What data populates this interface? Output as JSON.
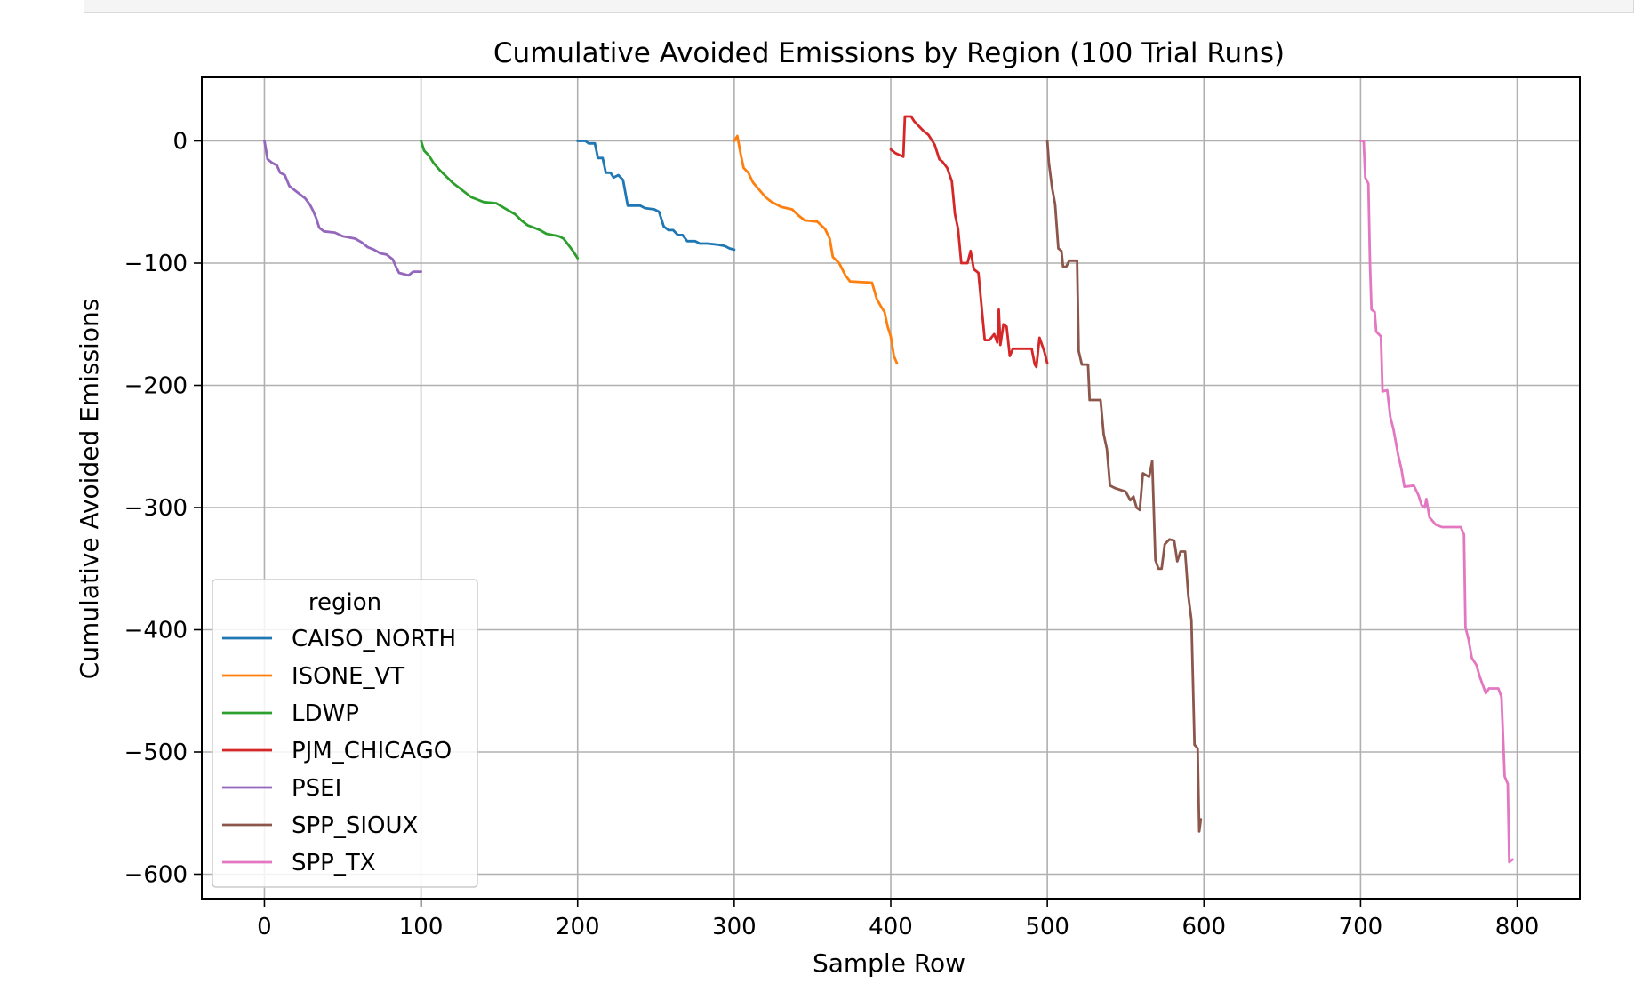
{
  "chart_data": {
    "type": "line",
    "title": "Cumulative Avoided Emissions by Region (100 Trial Runs)",
    "xlabel": "Sample Row",
    "ylabel": "Cumulative Avoided Emissions",
    "xlim": [
      -40,
      840
    ],
    "ylim": [
      -620,
      52
    ],
    "xticks": [
      0,
      100,
      200,
      300,
      400,
      500,
      600,
      700,
      800
    ],
    "yticks": [
      0,
      -100,
      -200,
      -300,
      -400,
      -500,
      -600
    ],
    "grid": true,
    "legend": {
      "title": "region",
      "placement": "lower-left"
    },
    "series": [
      {
        "name": "CAISO_NORTH",
        "color": "#1f77b4",
        "points": [
          [
            200,
            0
          ],
          [
            205,
            0
          ],
          [
            207,
            -2
          ],
          [
            211,
            -2
          ],
          [
            213,
            -14
          ],
          [
            216,
            -14
          ],
          [
            218,
            -26
          ],
          [
            221,
            -26
          ],
          [
            223,
            -30
          ],
          [
            226,
            -28
          ],
          [
            229,
            -32
          ],
          [
            232,
            -53
          ],
          [
            240,
            -53
          ],
          [
            243,
            -55
          ],
          [
            249,
            -56
          ],
          [
            252,
            -58
          ],
          [
            255,
            -70
          ],
          [
            258,
            -73
          ],
          [
            261,
            -73
          ],
          [
            264,
            -77
          ],
          [
            267,
            -77
          ],
          [
            270,
            -82
          ],
          [
            275,
            -82
          ],
          [
            278,
            -84
          ],
          [
            283,
            -84
          ],
          [
            290,
            -85
          ],
          [
            294,
            -86
          ],
          [
            297,
            -88
          ],
          [
            300,
            -89
          ]
        ]
      },
      {
        "name": "ISONE_VT",
        "color": "#ff7f0e",
        "points": [
          [
            300,
            0
          ],
          [
            302,
            4
          ],
          [
            304,
            -10
          ],
          [
            306,
            -22
          ],
          [
            309,
            -26
          ],
          [
            312,
            -34
          ],
          [
            316,
            -40
          ],
          [
            320,
            -46
          ],
          [
            324,
            -50
          ],
          [
            330,
            -54
          ],
          [
            337,
            -56
          ],
          [
            341,
            -61
          ],
          [
            345,
            -65
          ],
          [
            353,
            -66
          ],
          [
            358,
            -72
          ],
          [
            361,
            -80
          ],
          [
            363,
            -95
          ],
          [
            367,
            -100
          ],
          [
            371,
            -110
          ],
          [
            374,
            -115
          ],
          [
            388,
            -116
          ],
          [
            391,
            -129
          ],
          [
            394,
            -136
          ],
          [
            396,
            -140
          ],
          [
            398,
            -152
          ],
          [
            400,
            -160
          ],
          [
            402,
            -176
          ],
          [
            404,
            -182
          ]
        ]
      },
      {
        "name": "LDWP",
        "color": "#2ca02c",
        "points": [
          [
            100,
            0
          ],
          [
            102,
            -8
          ],
          [
            105,
            -12
          ],
          [
            108,
            -18
          ],
          [
            112,
            -24
          ],
          [
            116,
            -29
          ],
          [
            120,
            -34
          ],
          [
            124,
            -38
          ],
          [
            128,
            -42
          ],
          [
            132,
            -46
          ],
          [
            136,
            -48
          ],
          [
            140,
            -50
          ],
          [
            148,
            -51
          ],
          [
            152,
            -54
          ],
          [
            156,
            -57
          ],
          [
            160,
            -60
          ],
          [
            164,
            -65
          ],
          [
            168,
            -69
          ],
          [
            172,
            -71
          ],
          [
            176,
            -73
          ],
          [
            180,
            -76
          ],
          [
            184,
            -77
          ],
          [
            188,
            -78
          ],
          [
            191,
            -80
          ],
          [
            194,
            -85
          ],
          [
            197,
            -90
          ],
          [
            200,
            -96
          ]
        ]
      },
      {
        "name": "PJM_CHICAGO",
        "color": "#d62728",
        "points": [
          [
            400,
            -7
          ],
          [
            403,
            -10
          ],
          [
            408,
            -13
          ],
          [
            409,
            20
          ],
          [
            413,
            20
          ],
          [
            415,
            16
          ],
          [
            418,
            12
          ],
          [
            421,
            8
          ],
          [
            424,
            5
          ],
          [
            428,
            -3
          ],
          [
            431,
            -15
          ],
          [
            433,
            -17
          ],
          [
            436,
            -22
          ],
          [
            439,
            -33
          ],
          [
            441,
            -60
          ],
          [
            443,
            -72
          ],
          [
            445,
            -100
          ],
          [
            449,
            -100
          ],
          [
            451,
            -90
          ],
          [
            453,
            -105
          ],
          [
            456,
            -108
          ],
          [
            458,
            -136
          ],
          [
            460,
            -163
          ],
          [
            463,
            -163
          ],
          [
            466,
            -158
          ],
          [
            468,
            -165
          ],
          [
            469,
            -138
          ],
          [
            470,
            -167
          ],
          [
            472,
            -150
          ],
          [
            474,
            -152
          ],
          [
            476,
            -176
          ],
          [
            478,
            -170
          ],
          [
            490,
            -170
          ],
          [
            492,
            -183
          ],
          [
            493,
            -185
          ],
          [
            495,
            -161
          ],
          [
            498,
            -172
          ],
          [
            500,
            -182
          ]
        ]
      },
      {
        "name": "PSEI",
        "color": "#9467bd",
        "points": [
          [
            0,
            0
          ],
          [
            2,
            -15
          ],
          [
            5,
            -18
          ],
          [
            8,
            -20
          ],
          [
            10,
            -26
          ],
          [
            13,
            -28
          ],
          [
            16,
            -37
          ],
          [
            19,
            -40
          ],
          [
            22,
            -43
          ],
          [
            26,
            -47
          ],
          [
            29,
            -52
          ],
          [
            31,
            -57
          ],
          [
            33,
            -63
          ],
          [
            35,
            -71
          ],
          [
            38,
            -74
          ],
          [
            45,
            -75
          ],
          [
            50,
            -78
          ],
          [
            58,
            -80
          ],
          [
            62,
            -83
          ],
          [
            66,
            -87
          ],
          [
            70,
            -89
          ],
          [
            74,
            -92
          ],
          [
            78,
            -93
          ],
          [
            82,
            -97
          ],
          [
            84,
            -103
          ],
          [
            86,
            -108
          ],
          [
            89,
            -109
          ],
          [
            92,
            -110
          ],
          [
            95,
            -107
          ],
          [
            100,
            -107
          ]
        ]
      },
      {
        "name": "SPP_SIOUX",
        "color": "#8c564b",
        "points": [
          [
            500,
            0
          ],
          [
            501,
            -18
          ],
          [
            503,
            -38
          ],
          [
            505,
            -52
          ],
          [
            507,
            -88
          ],
          [
            509,
            -90
          ],
          [
            510,
            -103
          ],
          [
            512,
            -103
          ],
          [
            514,
            -98
          ],
          [
            519,
            -98
          ],
          [
            520,
            -172
          ],
          [
            522,
            -183
          ],
          [
            526,
            -183
          ],
          [
            527,
            -212
          ],
          [
            534,
            -212
          ],
          [
            536,
            -240
          ],
          [
            538,
            -252
          ],
          [
            540,
            -282
          ],
          [
            543,
            -284
          ],
          [
            550,
            -287
          ],
          [
            553,
            -294
          ],
          [
            555,
            -291
          ],
          [
            557,
            -300
          ],
          [
            559,
            -302
          ],
          [
            561,
            -272
          ],
          [
            565,
            -275
          ],
          [
            567,
            -262
          ],
          [
            569,
            -343
          ],
          [
            571,
            -350
          ],
          [
            573,
            -350
          ],
          [
            575,
            -330
          ],
          [
            578,
            -326
          ],
          [
            581,
            -327
          ],
          [
            583,
            -344
          ],
          [
            585,
            -336
          ],
          [
            588,
            -336
          ],
          [
            590,
            -372
          ],
          [
            592,
            -392
          ],
          [
            594,
            -494
          ],
          [
            596,
            -497
          ],
          [
            597,
            -565
          ],
          [
            598,
            -555
          ]
        ]
      },
      {
        "name": "SPP_TX",
        "color": "#e377c2",
        "points": [
          [
            700,
            0
          ],
          [
            702,
            0
          ],
          [
            703,
            -30
          ],
          [
            705,
            -35
          ],
          [
            706,
            -100
          ],
          [
            707,
            -138
          ],
          [
            709,
            -140
          ],
          [
            710,
            -156
          ],
          [
            713,
            -160
          ],
          [
            714,
            -205
          ],
          [
            717,
            -204
          ],
          [
            719,
            -226
          ],
          [
            721,
            -236
          ],
          [
            724,
            -257
          ],
          [
            726,
            -268
          ],
          [
            728,
            -283
          ],
          [
            734,
            -282
          ],
          [
            737,
            -290
          ],
          [
            739,
            -298
          ],
          [
            741,
            -300
          ],
          [
            742,
            -293
          ],
          [
            744,
            -308
          ],
          [
            748,
            -314
          ],
          [
            752,
            -316
          ],
          [
            764,
            -316
          ],
          [
            766,
            -322
          ],
          [
            767,
            -398
          ],
          [
            769,
            -408
          ],
          [
            771,
            -423
          ],
          [
            774,
            -429
          ],
          [
            776,
            -438
          ],
          [
            778,
            -445
          ],
          [
            780,
            -452
          ],
          [
            782,
            -448
          ],
          [
            788,
            -448
          ],
          [
            790,
            -455
          ],
          [
            792,
            -520
          ],
          [
            794,
            -526
          ],
          [
            795,
            -590
          ],
          [
            797,
            -588
          ]
        ]
      }
    ]
  }
}
